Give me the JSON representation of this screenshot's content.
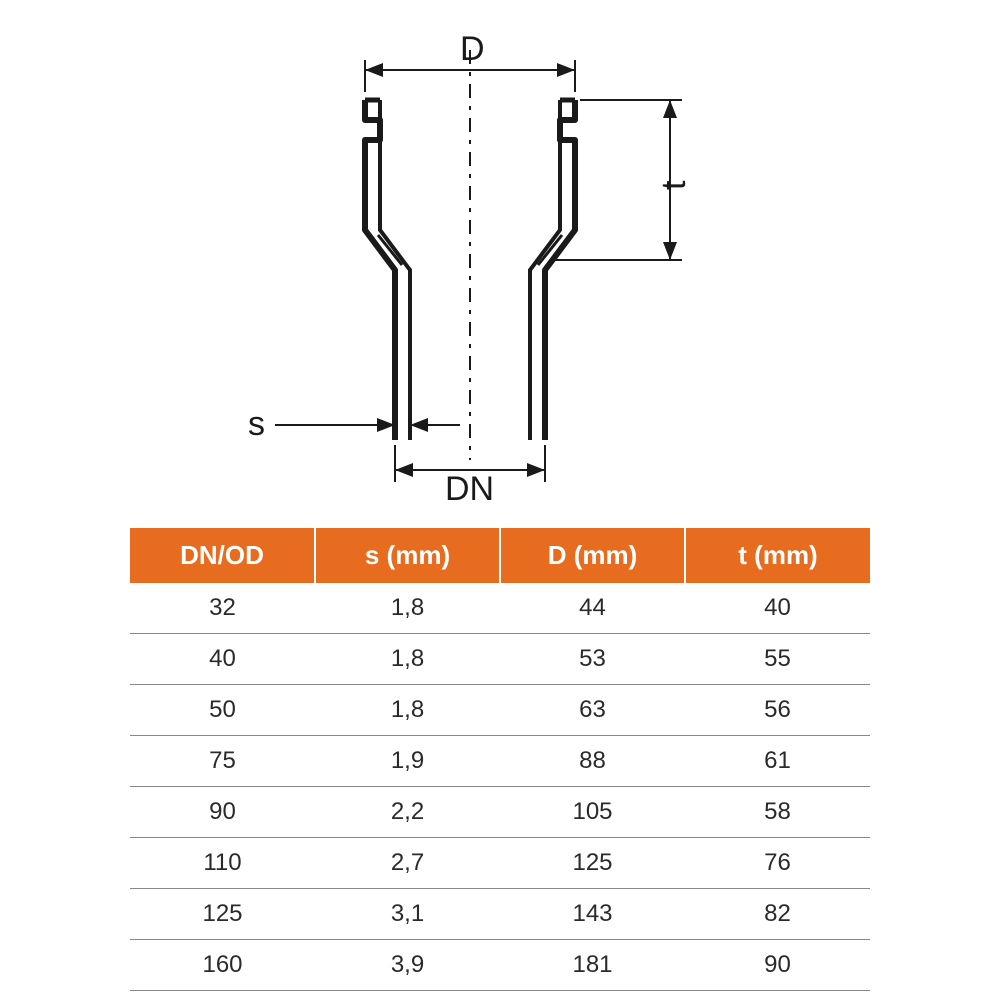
{
  "diagram": {
    "labels": {
      "D": "D",
      "t": "t",
      "s": "s",
      "DN": "DN"
    },
    "stroke_color": "#1a1a1a",
    "stroke_width_main": 6,
    "stroke_width_dim": 2,
    "centerline_dash": "12 6 3 6"
  },
  "table": {
    "header_bg": "#e86c1f",
    "header_fg": "#ffffff",
    "row_border": "#888888",
    "cell_color": "#2a2a2a",
    "columns": [
      "DN/OD",
      "s (mm)",
      "D (mm)",
      "t (mm)"
    ],
    "rows": [
      [
        "32",
        "1,8",
        "44",
        "40"
      ],
      [
        "40",
        "1,8",
        "53",
        "55"
      ],
      [
        "50",
        "1,8",
        "63",
        "56"
      ],
      [
        "75",
        "1,9",
        "88",
        "61"
      ],
      [
        "90",
        "2,2",
        "105",
        "58"
      ],
      [
        "110",
        "2,7",
        "125",
        "76"
      ],
      [
        "125",
        "3,1",
        "143",
        "82"
      ],
      [
        "160",
        "3,9",
        "181",
        "90"
      ]
    ],
    "col_widths": [
      "25%",
      "25%",
      "25%",
      "25%"
    ],
    "header_fontsize": 26,
    "cell_fontsize": 24
  }
}
